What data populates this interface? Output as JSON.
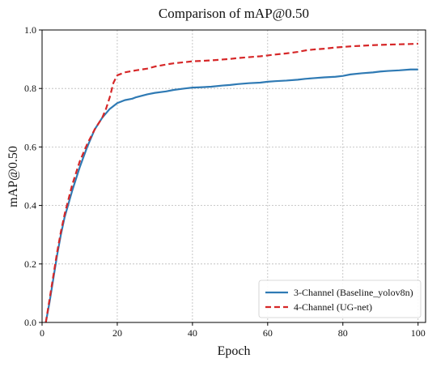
{
  "chart_data": {
    "type": "line",
    "title": "Comparison of mAP@0.50",
    "xlabel": "Epoch",
    "ylabel": "mAP@0.50",
    "xlim": [
      0,
      102
    ],
    "ylim": [
      0.0,
      1.0
    ],
    "x_ticks": [
      0,
      20,
      40,
      60,
      80,
      100
    ],
    "y_ticks": [
      0.0,
      0.2,
      0.4,
      0.6,
      0.8,
      1.0
    ],
    "grid": true,
    "legend_position": "lower-right",
    "series": [
      {
        "name": "3-Channel (Baseline_yolov8n)",
        "color": "#2f7ab4",
        "line_style": "solid",
        "x": [
          1,
          2,
          3,
          4,
          5,
          6,
          8,
          10,
          12,
          14,
          16,
          18,
          19,
          20,
          22,
          24,
          25,
          28,
          30,
          33,
          35,
          38,
          40,
          42,
          45,
          48,
          50,
          52,
          55,
          58,
          60,
          62,
          65,
          68,
          70,
          72,
          75,
          78,
          80,
          82,
          85,
          88,
          90,
          92,
          95,
          98,
          100
        ],
        "y": [
          0.0,
          0.07,
          0.15,
          0.23,
          0.3,
          0.36,
          0.45,
          0.53,
          0.6,
          0.66,
          0.7,
          0.73,
          0.74,
          0.75,
          0.76,
          0.765,
          0.77,
          0.78,
          0.785,
          0.79,
          0.795,
          0.8,
          0.803,
          0.804,
          0.806,
          0.81,
          0.812,
          0.815,
          0.818,
          0.82,
          0.823,
          0.825,
          0.827,
          0.83,
          0.833,
          0.835,
          0.838,
          0.84,
          0.843,
          0.848,
          0.852,
          0.855,
          0.858,
          0.86,
          0.862,
          0.865,
          0.865
        ]
      },
      {
        "name": "4-Channel (UG-net)",
        "color": "#d62728",
        "line_style": "dashed",
        "x": [
          1,
          2,
          3,
          4,
          5,
          6,
          8,
          10,
          12,
          14,
          16,
          17,
          18,
          19,
          20,
          22,
          25,
          28,
          30,
          33,
          35,
          38,
          40,
          42,
          45,
          48,
          50,
          52,
          55,
          58,
          60,
          62,
          65,
          68,
          70,
          72,
          75,
          78,
          80,
          82,
          85,
          88,
          90,
          92,
          95,
          98,
          100
        ],
        "y": [
          0.0,
          0.08,
          0.16,
          0.24,
          0.31,
          0.37,
          0.47,
          0.55,
          0.61,
          0.66,
          0.7,
          0.73,
          0.77,
          0.82,
          0.845,
          0.855,
          0.862,
          0.868,
          0.875,
          0.882,
          0.886,
          0.89,
          0.893,
          0.894,
          0.896,
          0.899,
          0.901,
          0.904,
          0.907,
          0.91,
          0.913,
          0.916,
          0.92,
          0.925,
          0.93,
          0.933,
          0.936,
          0.94,
          0.942,
          0.944,
          0.946,
          0.948,
          0.949,
          0.95,
          0.951,
          0.952,
          0.953
        ]
      }
    ]
  }
}
